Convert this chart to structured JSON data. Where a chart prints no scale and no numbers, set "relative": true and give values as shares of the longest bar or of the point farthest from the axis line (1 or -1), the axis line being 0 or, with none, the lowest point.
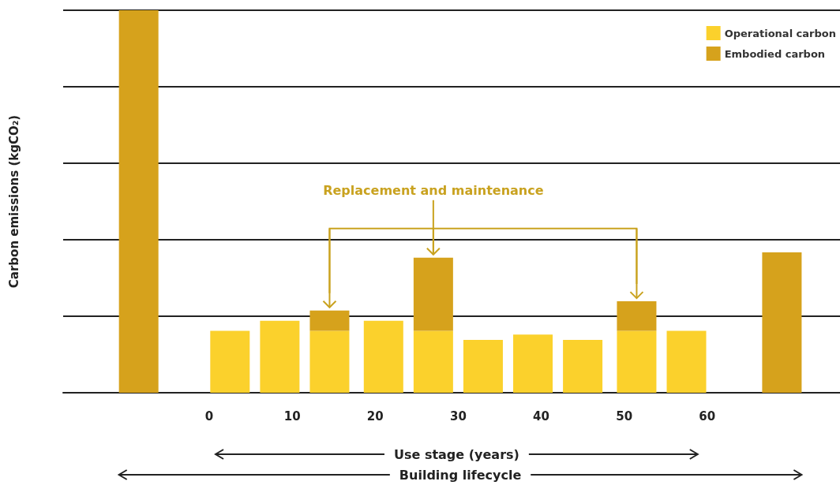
{
  "chart_data": {
    "type": "bar",
    "stacked": true,
    "relative": true,
    "ylabel": "Carbon emissions (kgCO₂)",
    "x": [
      -8.5,
      2.5,
      8.5,
      14.5,
      21,
      27,
      33,
      39,
      45,
      51.5,
      57.5,
      69
    ],
    "xlim": [
      -17.6,
      76
    ],
    "xticks": [
      0,
      10,
      20,
      30,
      40,
      50,
      60
    ],
    "series": [
      {
        "name": "Operational carbon",
        "color": "#fbd12c",
        "values": [
          null,
          0.162,
          0.188,
          0.162,
          0.188,
          0.162,
          0.138,
          0.152,
          0.138,
          0.162,
          0.162,
          null
        ]
      },
      {
        "name": "Embodied carbon",
        "color": "#d6a21c",
        "values": [
          1,
          null,
          null,
          0.053,
          null,
          0.191,
          null,
          null,
          null,
          0.077,
          null,
          0.367
        ]
      }
    ],
    "annotations": [
      "Replacement and maintenance",
      "Use stage (years)",
      "Building lifecycle"
    ],
    "grid": "y",
    "legend": "top right",
    "tick_labels": "x"
  }
}
